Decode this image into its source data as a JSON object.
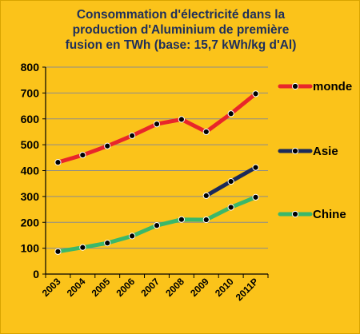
{
  "chart_data": {
    "type": "line",
    "title": "Consommation d'électricité dans la production d'Aluminium de première fusion en TWh (base: 15,7 kWh/kg d'Al)",
    "title_lines": [
      "Consommation d'électricité dans la",
      "production d'Aluminium de première",
      "fusion en TWh (base: 15,7 kWh/kg d'Al)"
    ],
    "categories": [
      "2003",
      "2004",
      "2005",
      "2006",
      "2007",
      "2008",
      "2009",
      "2010",
      "2011P"
    ],
    "ylim": [
      0,
      800
    ],
    "yticks": [
      "0",
      "100",
      "200",
      "300",
      "400",
      "500",
      "600",
      "700",
      "800"
    ],
    "grid": true,
    "legend_position": "right",
    "series": [
      {
        "name": "monde",
        "color": "#e8262a",
        "values": [
          432,
          460,
          495,
          535,
          580,
          598,
          550,
          620,
          697
        ]
      },
      {
        "name": "Asie",
        "color": "#1b2a5a",
        "values": [
          null,
          null,
          null,
          null,
          null,
          null,
          303,
          358,
          412
        ]
      },
      {
        "name": "Chine",
        "color": "#3ab86a",
        "values": [
          87,
          103,
          120,
          147,
          188,
          211,
          210,
          258,
          297
        ]
      }
    ],
    "background_color": "#fbc31a",
    "title_color": "#1e2f5b"
  }
}
